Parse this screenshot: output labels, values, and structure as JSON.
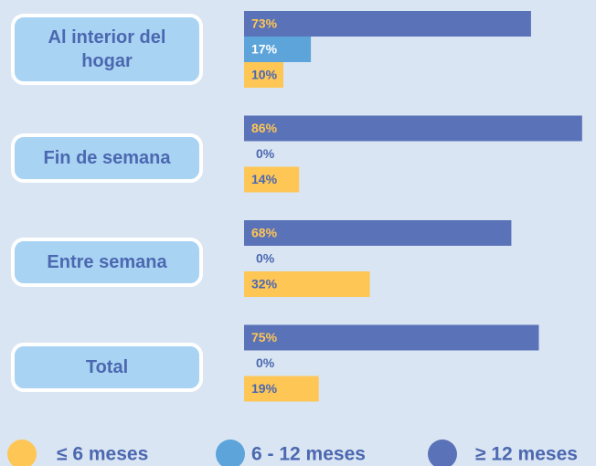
{
  "chart_data": {
    "type": "bar",
    "orientation": "horizontal",
    "categories": [
      "Al interior del hogar",
      "Fin de semana",
      "Entre semana",
      "Total"
    ],
    "series": [
      {
        "name": "≤ 6 meses",
        "color": "#fec655",
        "values": [
          10,
          14,
          32,
          19
        ],
        "value_labels": [
          "10%",
          "14%",
          "32%",
          "19%"
        ]
      },
      {
        "name": "6 - 12 meses",
        "color": "#5ca4da",
        "values": [
          17,
          0,
          0,
          0
        ],
        "value_labels": [
          "17%",
          "0%",
          "0%",
          "0%"
        ]
      },
      {
        "name": "≥ 12 meses",
        "color": "#5a72b8",
        "values": [
          73,
          86,
          68,
          75
        ],
        "value_labels": [
          "73%",
          "86%",
          "68%",
          "75%"
        ]
      }
    ],
    "legend": "bottom"
  }
}
